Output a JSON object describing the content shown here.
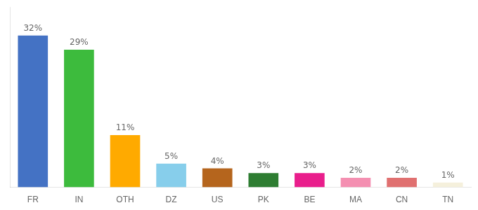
{
  "chart_data": {
    "type": "bar",
    "categories": [
      "FR",
      "IN",
      "OTH",
      "DZ",
      "US",
      "PK",
      "BE",
      "MA",
      "CN",
      "TN"
    ],
    "values": [
      32,
      29,
      11,
      5,
      4,
      3,
      3,
      2,
      2,
      1
    ],
    "value_labels": [
      "32%",
      "29%",
      "11%",
      "5%",
      "4%",
      "3%",
      "3%",
      "2%",
      "2%",
      "1%"
    ],
    "colors": [
      "#4472c4",
      "#3dbb3d",
      "#ffaa00",
      "#87ceeb",
      "#b5651d",
      "#2e7d32",
      "#e91e8c",
      "#f48fb1",
      "#e07070",
      "#f5f0dc"
    ],
    "ylim": [
      0,
      38
    ],
    "grid": false,
    "data_labels": true,
    "tick_labels": "x"
  }
}
